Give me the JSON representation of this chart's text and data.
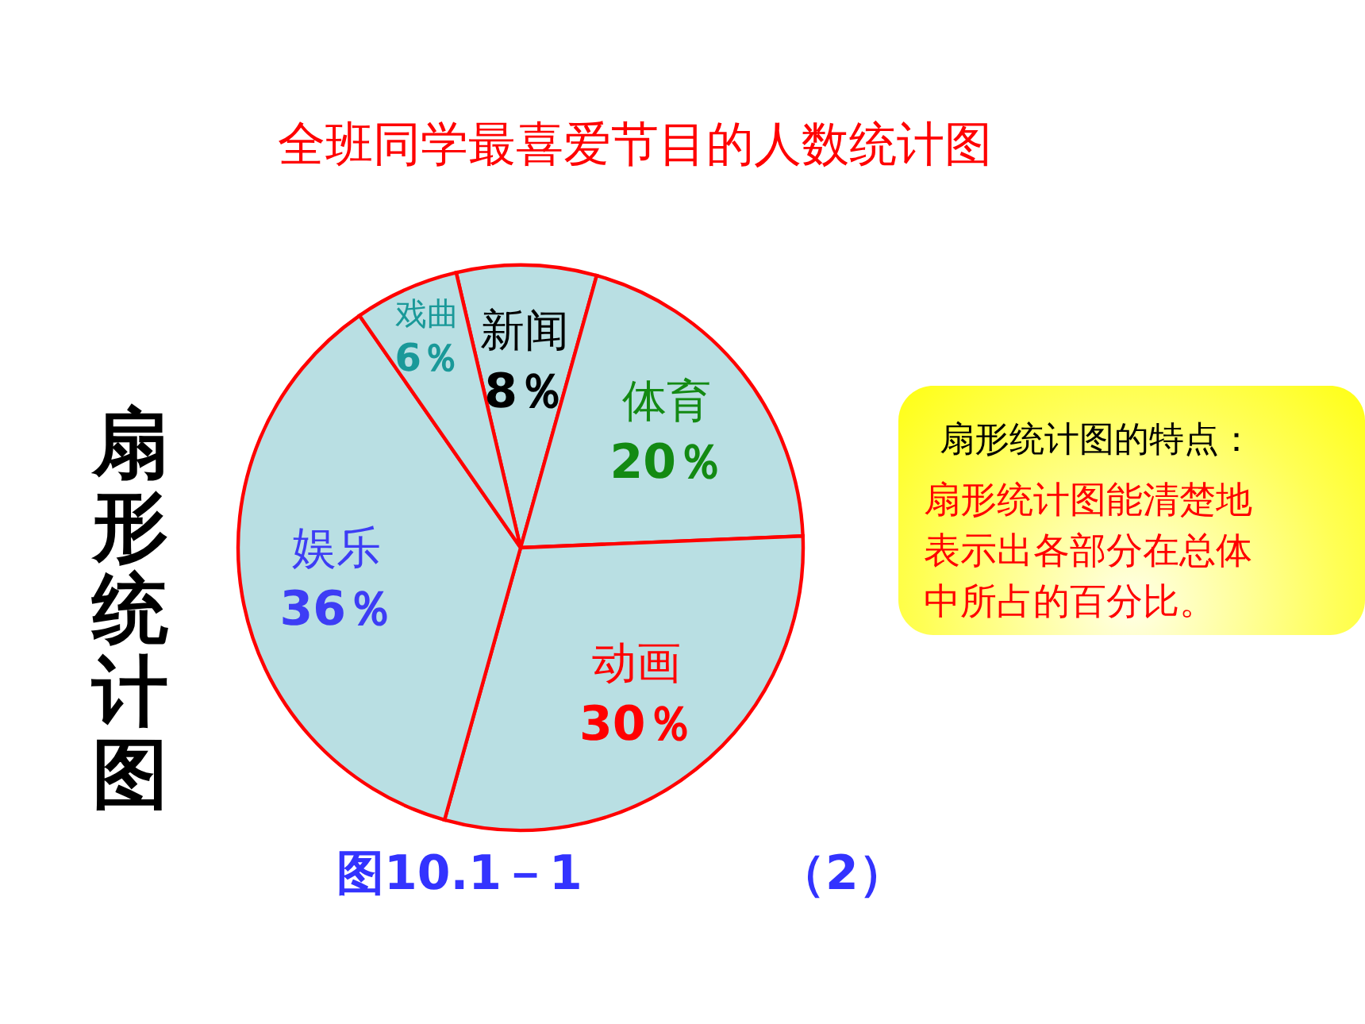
{
  "chart_data": {
    "type": "pie",
    "title": "全班同学最喜爱节目的人数统计图",
    "categories": [
      "新闻",
      "体育",
      "动画",
      "娱乐",
      "戏曲"
    ],
    "values": [
      8,
      20,
      30,
      36,
      6
    ],
    "colors": [
      "#b9dfe3",
      "#b9dfe3",
      "#b9dfe3",
      "#b9dfe3",
      "#b9dfe3"
    ],
    "value_labels": [
      "8％",
      "20％",
      "30％",
      "36％",
      "6％"
    ],
    "annotations": [
      "扇形统计图",
      "扇形统计图的特点：",
      "扇形统计图能清楚地表示出各部分在总体中所占的百分比。",
      "图10.1－1",
      "（2）"
    ]
  }
}
